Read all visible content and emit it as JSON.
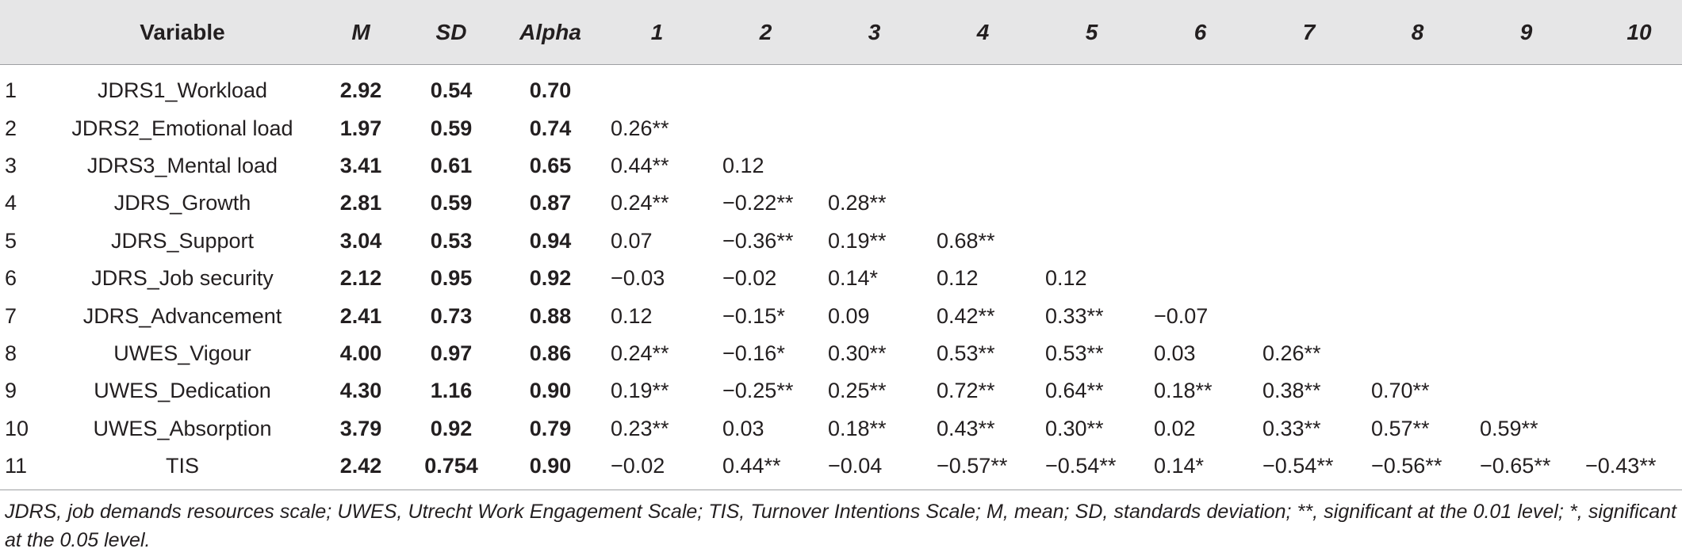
{
  "table": {
    "headers": [
      "",
      "Variable",
      "M",
      "SD",
      "Alpha",
      "1",
      "2",
      "3",
      "4",
      "5",
      "6",
      "7",
      "8",
      "9",
      "10"
    ],
    "rows": [
      {
        "idx": "1",
        "variable": "JDRS1_Workload",
        "m": "2.92",
        "sd": "0.54",
        "alpha": "0.70",
        "corr": [
          "",
          "",
          "",
          "",
          "",
          "",
          "",
          "",
          "",
          ""
        ]
      },
      {
        "idx": "2",
        "variable": "JDRS2_Emotional load",
        "m": "1.97",
        "sd": "0.59",
        "alpha": "0.74",
        "corr": [
          "0.26**",
          "",
          "",
          "",
          "",
          "",
          "",
          "",
          "",
          ""
        ]
      },
      {
        "idx": "3",
        "variable": "JDRS3_Mental load",
        "m": "3.41",
        "sd": "0.61",
        "alpha": "0.65",
        "corr": [
          "0.44**",
          "0.12",
          "",
          "",
          "",
          "",
          "",
          "",
          "",
          ""
        ]
      },
      {
        "idx": "4",
        "variable": "JDRS_Growth",
        "m": "2.81",
        "sd": "0.59",
        "alpha": "0.87",
        "corr": [
          "0.24**",
          "−0.22**",
          "0.28**",
          "",
          "",
          "",
          "",
          "",
          "",
          ""
        ]
      },
      {
        "idx": "5",
        "variable": "JDRS_Support",
        "m": "3.04",
        "sd": "0.53",
        "alpha": "0.94",
        "corr": [
          "0.07",
          "−0.36**",
          "0.19**",
          "0.68**",
          "",
          "",
          "",
          "",
          "",
          ""
        ]
      },
      {
        "idx": "6",
        "variable": "JDRS_Job security",
        "m": "2.12",
        "sd": "0.95",
        "alpha": "0.92",
        "corr": [
          "−0.03",
          "−0.02",
          "0.14*",
          "0.12",
          "0.12",
          "",
          "",
          "",
          "",
          ""
        ]
      },
      {
        "idx": "7",
        "variable": "JDRS_Advancement",
        "m": "2.41",
        "sd": "0.73",
        "alpha": "0.88",
        "corr": [
          "0.12",
          "−0.15*",
          "0.09",
          "0.42**",
          "0.33**",
          "−0.07",
          "",
          "",
          "",
          ""
        ]
      },
      {
        "idx": "8",
        "variable": "UWES_Vigour",
        "m": "4.00",
        "sd": "0.97",
        "alpha": "0.86",
        "corr": [
          "0.24**",
          "−0.16*",
          "0.30**",
          "0.53**",
          "0.53**",
          "0.03",
          "0.26**",
          "",
          "",
          ""
        ]
      },
      {
        "idx": "9",
        "variable": "UWES_Dedication",
        "m": "4.30",
        "sd": "1.16",
        "alpha": "0.90",
        "corr": [
          "0.19**",
          "−0.25**",
          "0.25**",
          "0.72**",
          "0.64**",
          "0.18**",
          "0.38**",
          "0.70**",
          "",
          ""
        ]
      },
      {
        "idx": "10",
        "variable": "UWES_Absorption",
        "m": "3.79",
        "sd": "0.92",
        "alpha": "0.79",
        "corr": [
          "0.23**",
          "0.03",
          "0.18**",
          "0.43**",
          "0.30**",
          "0.02",
          "0.33**",
          "0.57**",
          "0.59**",
          ""
        ]
      },
      {
        "idx": "11",
        "variable": "TIS",
        "m": "2.42",
        "sd": "0.754",
        "alpha": "0.90",
        "corr": [
          "−0.02",
          "0.44**",
          "−0.04",
          "−0.57**",
          "−0.54**",
          "0.14*",
          "−0.54**",
          "−0.56**",
          "−0.65**",
          "−0.43**"
        ]
      }
    ]
  },
  "footnote": "JDRS, job demands resources scale; UWES, Utrecht Work Engagement Scale; TIS, Turnover Intentions Scale; M, mean; SD, standards deviation; **, significant at the 0.01 level; *, significant at the 0.05 level."
}
